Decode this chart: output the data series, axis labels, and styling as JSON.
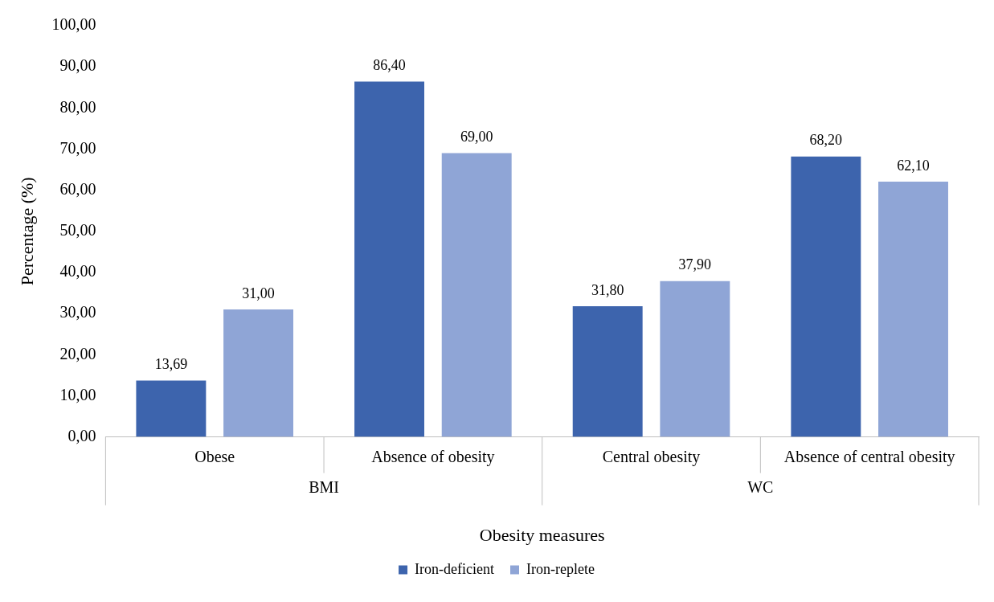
{
  "chart_data": {
    "type": "bar",
    "xlabel": "Obesity measures",
    "ylabel": "Percentage (%)",
    "categories": [
      "Obese",
      "Absence of obesity",
      "Central obesity",
      "Absence of central obesity"
    ],
    "annotations": [
      "BMI",
      "WC"
    ],
    "series": [
      {
        "name": "Iron-deficient",
        "color": "#3d64ad",
        "values": [
          13.69,
          86.4,
          31.8,
          68.2
        ],
        "value_labels": [
          "13,69",
          "86,40",
          "31,80",
          "68,20"
        ]
      },
      {
        "name": "Iron-replete",
        "color": "#8fa5d6",
        "values": [
          31.0,
          69.0,
          37.9,
          62.1
        ],
        "value_labels": [
          "31,00",
          "69,00",
          "37,90",
          "62,10"
        ]
      }
    ],
    "ylim": [
      0,
      100
    ],
    "yticks": [
      {
        "value": 0,
        "label": "0,00"
      },
      {
        "value": 10,
        "label": "10,00"
      },
      {
        "value": 20,
        "label": "20,00"
      },
      {
        "value": 30,
        "label": "30,00"
      },
      {
        "value": 40,
        "label": "40,00"
      },
      {
        "value": 50,
        "label": "50,00"
      },
      {
        "value": 60,
        "label": "60,00"
      },
      {
        "value": 70,
        "label": "70,00"
      },
      {
        "value": 80,
        "label": "80,00"
      },
      {
        "value": 90,
        "label": "90,00"
      },
      {
        "value": 100,
        "label": "100,00"
      }
    ],
    "grid": false,
    "legend": "bottom"
  }
}
